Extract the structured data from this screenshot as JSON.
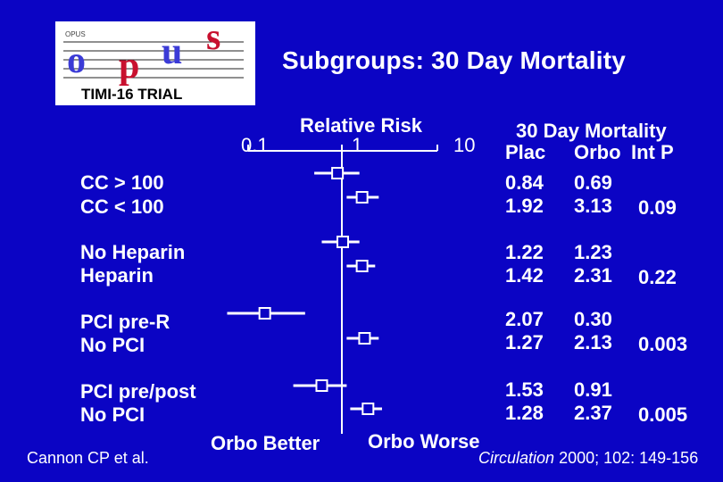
{
  "slide": {
    "title": "Subgroups: 30 Day Mortality",
    "logo": {
      "small_text": "OPUS",
      "letters": "opus",
      "banner": "TIMI-16 TRIAL"
    },
    "axis": {
      "header": "Relative Risk",
      "tick_low": "0.1",
      "tick_mid": "1",
      "tick_high": "10"
    },
    "table": {
      "header": "30 Day Mortality",
      "col_plac": "Plac",
      "col_orbo": "Orbo",
      "col_int": "Int P"
    },
    "groups": [
      {
        "labels": [
          "CC > 100",
          "CC < 100"
        ],
        "plac": [
          "0.84",
          "1.92"
        ],
        "orbo": [
          "0.69",
          "3.13"
        ],
        "p": "0.09"
      },
      {
        "labels": [
          "No Heparin",
          "Heparin"
        ],
        "plac": [
          "1.22",
          "1.42"
        ],
        "orbo": [
          "1.23",
          "2.31"
        ],
        "p": "0.22"
      },
      {
        "labels": [
          "PCI pre-R",
          "No PCI"
        ],
        "plac": [
          "2.07",
          "1.27"
        ],
        "orbo": [
          "0.30",
          "2.13"
        ],
        "p": "0.003"
      },
      {
        "labels": [
          "PCI pre/post",
          "No PCI"
        ],
        "plac": [
          "1.53",
          "1.28"
        ],
        "orbo": [
          "0.91",
          "2.37"
        ],
        "p": "0.005"
      }
    ],
    "footer": {
      "left_citation": "Cannon CP et al.",
      "orbo_better": "Orbo  Better",
      "orbo_worse": "Orbo  Worse",
      "journal": "Circulation",
      "journal_ref": "2000; 102: 149-156"
    },
    "colors": {
      "background": "#0b04c4",
      "text": "#ffffff",
      "logo_red": "#c8102e",
      "logo_blue": "#3b3bd6"
    }
  },
  "chart_data": {
    "type": "forest",
    "x_scale": "log",
    "x_ticks": [
      0.1,
      1,
      10
    ],
    "rows": [
      {
        "label": "CC > 100",
        "rr": 0.88,
        "ci": [
          0.5,
          1.5
        ]
      },
      {
        "label": "CC < 100",
        "rr": 1.6,
        "ci": [
          1.1,
          2.4
        ]
      },
      {
        "label": "No Heparin",
        "rr": 1.0,
        "ci": [
          0.6,
          1.5
        ]
      },
      {
        "label": "Heparin",
        "rr": 1.6,
        "ci": [
          1.1,
          2.2
        ]
      },
      {
        "label": "PCI pre-R",
        "rr": 0.15,
        "ci": [
          0.06,
          0.4
        ]
      },
      {
        "label": "No PCI",
        "rr": 1.7,
        "ci": [
          1.1,
          2.4
        ]
      },
      {
        "label": "PCI pre/post",
        "rr": 0.6,
        "ci": [
          0.3,
          1.1
        ]
      },
      {
        "label": "No PCI",
        "rr": 1.85,
        "ci": [
          1.2,
          2.6
        ]
      }
    ]
  }
}
